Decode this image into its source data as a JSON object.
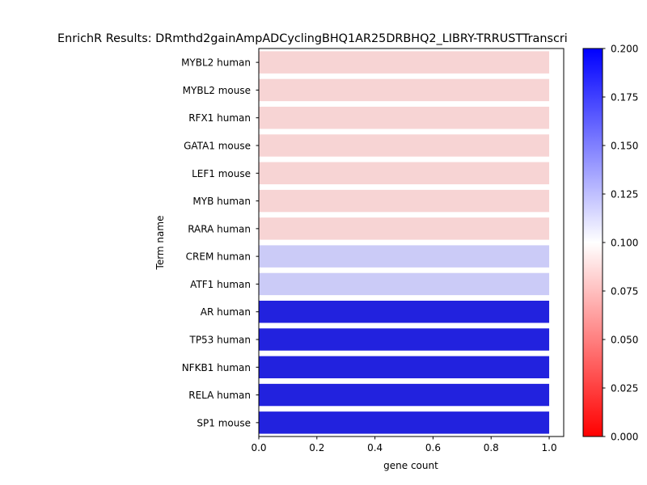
{
  "chart_data": {
    "type": "bar",
    "orientation": "horizontal",
    "title": "EnrichR Results: DRmthd2gainAmpADCyclingBHQ1AR25DRBHQ2_LIBRY-TRRUSTTranscri",
    "xlabel": "gene count",
    "ylabel": "Term name",
    "xlim": [
      0,
      1.05
    ],
    "xticks": [
      "0.0",
      "0.2",
      "0.4",
      "0.6",
      "0.8",
      "1.0"
    ],
    "categories": [
      "MYBL2 human",
      "MYBL2 mouse",
      "RFX1 human",
      "GATA1 mouse",
      "LEF1 mouse",
      "MYB human",
      "RARA human",
      "CREM human",
      "ATF1 human",
      "AR human",
      "TP53 human",
      "NFKB1 human",
      "RELA human",
      "SP1 mouse"
    ],
    "values": [
      1,
      1,
      1,
      1,
      1,
      1,
      1,
      1,
      1,
      1,
      1,
      1,
      1,
      1
    ],
    "colors": [
      "#f7d4d4",
      "#f7d4d4",
      "#f7d4d4",
      "#f7d4d4",
      "#f7d4d4",
      "#f7d4d4",
      "#f7d4d4",
      "#cbcbf7",
      "#cbcbf7",
      "#2222de",
      "#2222de",
      "#2222de",
      "#2222de",
      "#2222de"
    ],
    "colorbar": {
      "range": [
        0.0,
        0.2
      ],
      "ticks": [
        "0.000",
        "0.025",
        "0.050",
        "0.075",
        "0.100",
        "0.125",
        "0.150",
        "0.175",
        "0.200"
      ],
      "colormap": [
        "#ff0000",
        "#ffffff",
        "#0000ff"
      ]
    },
    "grid": false,
    "legend": "none"
  }
}
